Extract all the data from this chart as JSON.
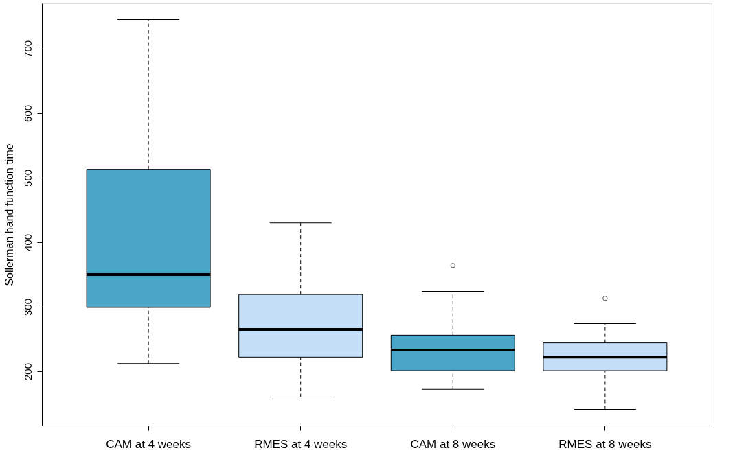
{
  "chart_data": {
    "type": "box",
    "ylabel": "Sollerman hand function time",
    "categories": [
      "CAM at 4 weeks",
      "RMES at 4 weeks",
      "CAM at 8 weeks",
      "RMES at 8 weeks"
    ],
    "colors": [
      "#4ba5c8",
      "#c6dff8",
      "#4ba5c8",
      "#c6dff8"
    ],
    "boxes": [
      {
        "low": 212,
        "q1": 299,
        "median": 350,
        "q3": 513,
        "high": 745
      },
      {
        "low": 160,
        "q1": 222,
        "median": 265,
        "q3": 319,
        "high": 430
      },
      {
        "low": 172,
        "q1": 201,
        "median": 233,
        "q3": 256,
        "high": 324,
        "outliers": [
          364
        ]
      },
      {
        "low": 141,
        "q1": 201,
        "median": 222,
        "q3": 244,
        "high": 274,
        "outliers": [
          313
        ]
      }
    ],
    "ylim": [
      116,
      770
    ],
    "yticks": [
      200,
      300,
      400,
      500,
      600,
      700
    ],
    "grid": false
  }
}
